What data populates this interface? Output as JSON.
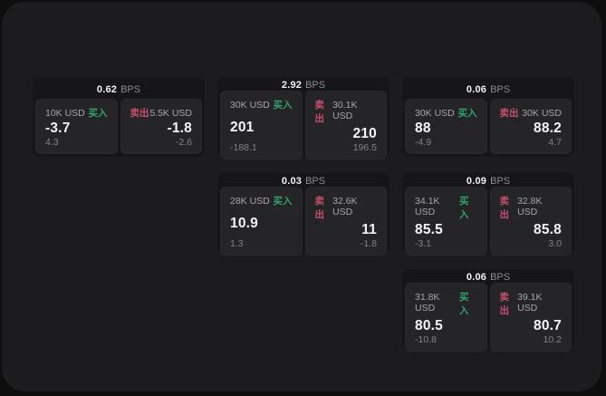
{
  "labels": {
    "buy": "买入",
    "sell": "卖出",
    "bps_unit": "BPS"
  },
  "colors": {
    "buy": "#2fa36a",
    "sell": "#c8506b"
  },
  "cards": [
    {
      "row": 1,
      "col": 1,
      "bps": "0.62",
      "buy": {
        "size": "10K USD",
        "price": "-3.7",
        "delta": "4.3"
      },
      "sell": {
        "size": "5.5K USD",
        "price": "-1.8",
        "delta": "-2.6"
      }
    },
    {
      "row": 1,
      "col": 2,
      "bps": "2.92",
      "buy": {
        "size": "30K USD",
        "price": "201",
        "delta": "-188.1"
      },
      "sell": {
        "size": "30.1K USD",
        "price": "210",
        "delta": "196.5"
      }
    },
    {
      "row": 1,
      "col": 3,
      "bps": "0.06",
      "buy": {
        "size": "30K USD",
        "price": "88",
        "delta": "-4.9"
      },
      "sell": {
        "size": "30K USD",
        "price": "88.2",
        "delta": "4.7"
      }
    },
    {
      "row": 2,
      "col": 2,
      "bps": "0.03",
      "buy": {
        "size": "28K USD",
        "price": "10.9",
        "delta": "1.3"
      },
      "sell": {
        "size": "32.6K USD",
        "price": "11",
        "delta": "-1.8"
      }
    },
    {
      "row": 2,
      "col": 3,
      "bps": "0.09",
      "buy": {
        "size": "34.1K USD",
        "price": "85.5",
        "delta": "-3.1"
      },
      "sell": {
        "size": "32.8K USD",
        "price": "85.8",
        "delta": "3.0"
      }
    },
    {
      "row": 3,
      "col": 3,
      "bps": "0.06",
      "buy": {
        "size": "31.8K USD",
        "price": "80.5",
        "delta": "-10.8"
      },
      "sell": {
        "size": "39.1K USD",
        "price": "80.7",
        "delta": "10.2"
      }
    }
  ]
}
